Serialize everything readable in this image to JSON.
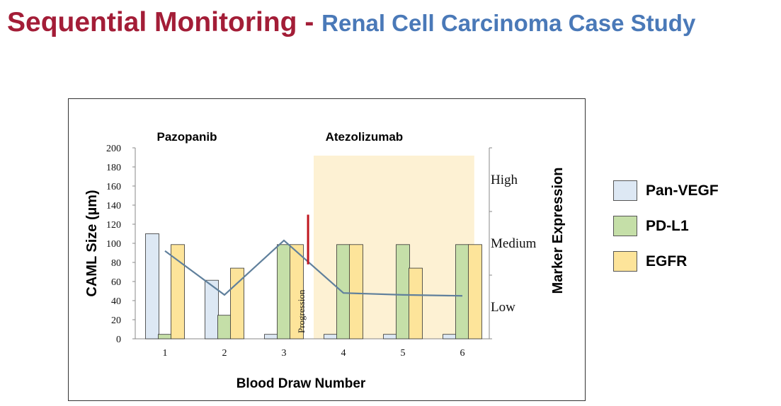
{
  "title": {
    "main": "Sequential Monitoring - ",
    "sub": "Renal Cell Carcinoma Case Study"
  },
  "colors": {
    "title_main": "#a31d37",
    "title_sub": "#4a79b8",
    "pan_vegf": "#dde8f4",
    "pd_l1": "#c5dfa8",
    "egfr": "#fde49a",
    "line": "#60809c",
    "progression": "#c0161e",
    "shade": "#fdf1d3"
  },
  "chart_data": {
    "type": "bar",
    "xlabel": "Blood Draw Number",
    "ylabel": "CAML Size (µm)",
    "ylabel_right": "Marker Expression",
    "categories": [
      "1",
      "2",
      "3",
      "4",
      "5",
      "6"
    ],
    "ylim": [
      0,
      200
    ],
    "yticks": [
      "0",
      "20",
      "40",
      "60",
      "80",
      "100",
      "120",
      "140",
      "160",
      "180",
      "200"
    ],
    "right_axis": {
      "labels": [
        "Low",
        "Medium",
        "High"
      ],
      "scale": [
        0,
        3
      ]
    },
    "series": [
      {
        "name": "Pan-VEGF",
        "values": [
          1.65,
          0.92,
          0.07,
          0.07,
          0.07,
          0.07
        ]
      },
      {
        "name": "PD-L1",
        "values": [
          0.07,
          0.37,
          1.48,
          1.48,
          1.48,
          1.48
        ]
      },
      {
        "name": "EGFR",
        "values": [
          1.48,
          1.11,
          1.48,
          1.48,
          1.11,
          1.48
        ]
      }
    ],
    "caml_size": [
      92,
      46,
      103,
      48,
      46,
      45
    ],
    "regions": [
      {
        "label": "Pazopanib",
        "from": 0.5,
        "to": 3.5,
        "shaded": false
      },
      {
        "label": "Atezolizumab",
        "from": 3.5,
        "to": 6.2,
        "shaded": true
      }
    ],
    "annotation": {
      "text": "Progression",
      "x": 3.37,
      "y_from": 78,
      "y_to": 130
    }
  }
}
